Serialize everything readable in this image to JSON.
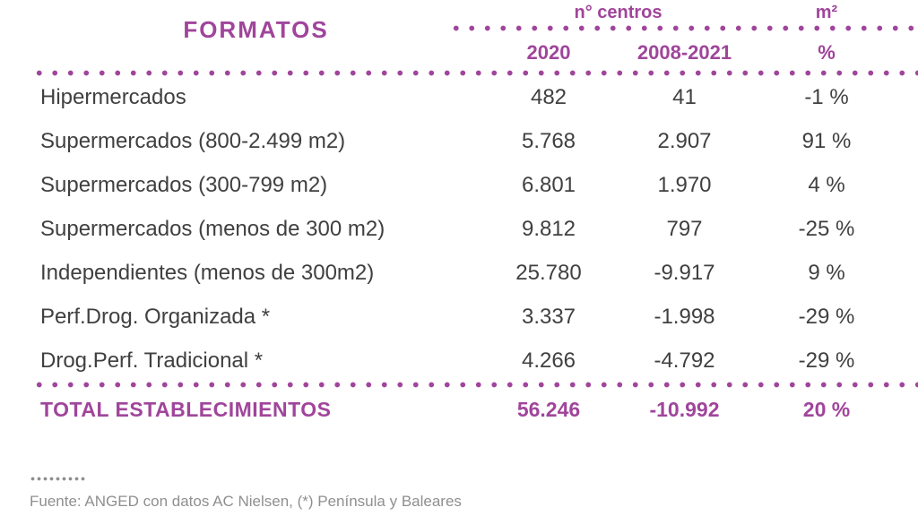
{
  "colors": {
    "accent": "#A0459B",
    "body_text": "#404040",
    "muted_text": "#8F8F8F"
  },
  "header": {
    "formats": "FORMATOS",
    "centros_group": "n° centros",
    "m2_group": "m²",
    "col_2020": "2020",
    "col_period": "2008-2021",
    "col_pct": "%"
  },
  "rows": [
    {
      "label": "Hipermercados",
      "v2020": "482",
      "vperiod": "41",
      "vpct": "-1 %"
    },
    {
      "label": "Supermercados (800-2.499 m2)",
      "v2020": "5.768",
      "vperiod": "2.907",
      "vpct": "91 %"
    },
    {
      "label": "Supermercados (300-799 m2)",
      "v2020": "6.801",
      "vperiod": "1.970",
      "vpct": "4 %"
    },
    {
      "label": "Supermercados (menos de 300 m2)",
      "v2020": "9.812",
      "vperiod": "797",
      "vpct": "-25 %"
    },
    {
      "label": "Independientes (menos de 300m2)",
      "v2020": "25.780",
      "vperiod": "-9.917",
      "vpct": "9 %"
    },
    {
      "label": "Perf.Drog. Organizada *",
      "v2020": "3.337",
      "vperiod": "-1.998",
      "vpct": "-29 %"
    },
    {
      "label": "Drog.Perf. Tradicional *",
      "v2020": "4.266",
      "vperiod": "-4.792",
      "vpct": "-29 %"
    }
  ],
  "total": {
    "label": "TOTAL ESTABLECIMIENTOS",
    "v2020": "56.246",
    "vperiod": "-10.992",
    "vpct": "20 %"
  },
  "footer": {
    "source": "Fuente: ANGED con datos AC Nielsen, (*) Península y Baleares"
  }
}
